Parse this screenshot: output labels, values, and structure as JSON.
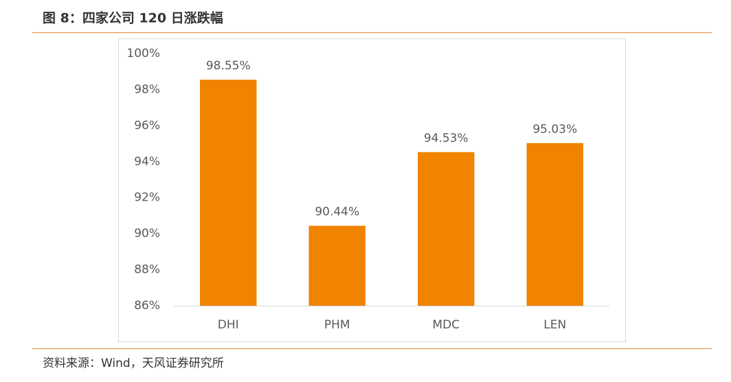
{
  "chart_data": {
    "type": "bar",
    "title": "图 8：四家公司 120 日涨跌幅",
    "source": "资料来源：Wind，天风证券研究所",
    "categories": [
      "DHI",
      "PHM",
      "MDC",
      "LEN"
    ],
    "values": [
      98.55,
      90.44,
      94.53,
      95.03
    ],
    "value_labels": [
      "98.55%",
      "90.44%",
      "94.53%",
      "95.03%"
    ],
    "color": "#f08300",
    "ylim": [
      86,
      100
    ],
    "yticks": [
      {
        "value": 86,
        "label": "86%"
      },
      {
        "value": 88,
        "label": "88%"
      },
      {
        "value": 90,
        "label": "90%"
      },
      {
        "value": 92,
        "label": "92%"
      },
      {
        "value": 94,
        "label": "94%"
      },
      {
        "value": 96,
        "label": "96%"
      },
      {
        "value": 98,
        "label": "98%"
      },
      {
        "value": 100,
        "label": "100%"
      }
    ],
    "grid": false
  }
}
